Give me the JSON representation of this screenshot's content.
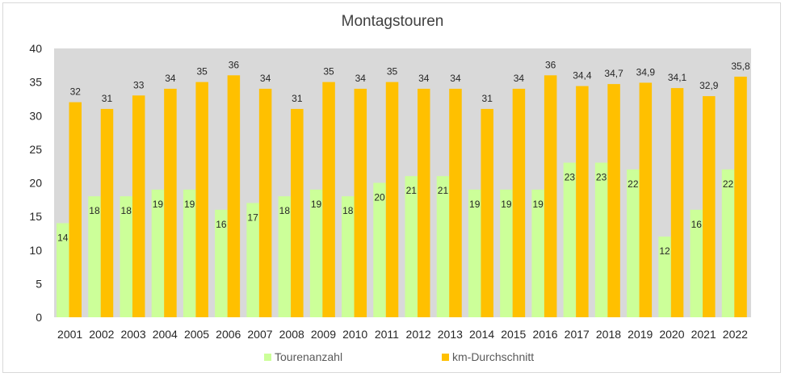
{
  "chart_data": {
    "type": "bar",
    "title": "Montagstouren",
    "categories": [
      "2001",
      "2002",
      "2003",
      "2004",
      "2005",
      "2006",
      "2007",
      "2008",
      "2009",
      "2010",
      "2011",
      "2012",
      "2013",
      "2014",
      "2015",
      "2016",
      "2017",
      "2018",
      "2019",
      "2020",
      "2021",
      "2022"
    ],
    "series": [
      {
        "name": "Tourenanzahl",
        "color": "#ccff99",
        "values": [
          14,
          18,
          18,
          19,
          19,
          16,
          17,
          18,
          19,
          18,
          20,
          21,
          21,
          19,
          19,
          19,
          23,
          23,
          22,
          12,
          16,
          22
        ],
        "labels": [
          "14",
          "18",
          "18",
          "19",
          "19",
          "16",
          "17",
          "18",
          "19",
          "18",
          "20",
          "21",
          "21",
          "19",
          "19",
          "19",
          "23",
          "23",
          "22",
          "12",
          "16",
          "22"
        ]
      },
      {
        "name": "km-Durchschnitt",
        "color": "#ffc000",
        "values": [
          32,
          31,
          33,
          34,
          35,
          36,
          34,
          31,
          35,
          34,
          35,
          34,
          34,
          31,
          34,
          36,
          34.4,
          34.7,
          34.9,
          34.1,
          32.9,
          35.8
        ],
        "labels": [
          "32",
          "31",
          "33",
          "34",
          "35",
          "36",
          "34",
          "31",
          "35",
          "34",
          "35",
          "34",
          "34",
          "31",
          "34",
          "36",
          "34,4",
          "34,7",
          "34,9",
          "34,1",
          "32,9",
          "35,8"
        ]
      }
    ],
    "yticks": [
      "0",
      "5",
      "10",
      "15",
      "20",
      "25",
      "30",
      "35",
      "40"
    ],
    "ylim": [
      0,
      40
    ],
    "plot_background": "#d9d9d9",
    "legend_position": "bottom"
  }
}
